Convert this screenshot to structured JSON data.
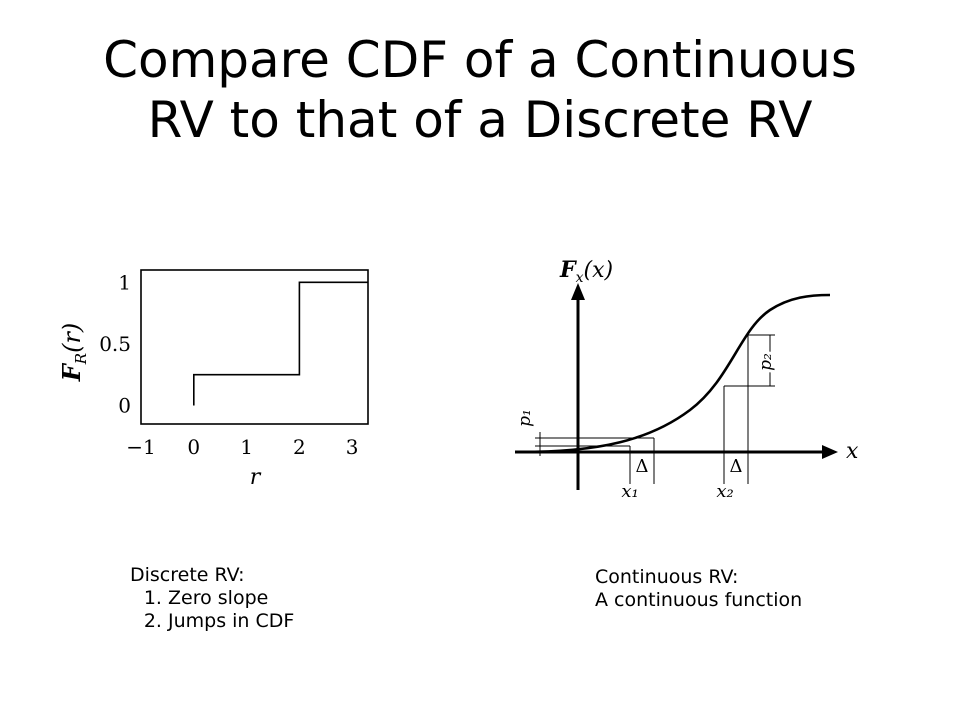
{
  "slide": {
    "title_line1": "Compare CDF of a Continuous",
    "title_line2": "RV to that of a Discrete RV"
  },
  "discrete_note": {
    "heading": "Discrete RV:",
    "items": [
      "Zero slope",
      "Jumps in CDF"
    ]
  },
  "continuous_note": {
    "heading": "Continuous RV:",
    "line": "A continuous function"
  },
  "chart_data": [
    {
      "type": "line",
      "subtype": "step",
      "title": "",
      "xlabel": "r",
      "ylabel": "F_R(r)",
      "xlim": [
        -1,
        3.3
      ],
      "ylim": [
        -0.15,
        1.1
      ],
      "x_ticks": [
        "−1",
        "0",
        "1",
        "2",
        "3"
      ],
      "y_ticks": [
        "0",
        "0.5",
        "1"
      ],
      "points": [
        [
          0,
          0
        ],
        [
          0,
          0.25
        ],
        [
          2,
          0.25
        ],
        [
          2,
          1
        ],
        [
          3.3,
          1
        ]
      ],
      "grid": false
    },
    {
      "type": "line",
      "subtype": "sigmoid-schematic",
      "title": "",
      "ylabel": "F_X(x)",
      "xlabel": "x",
      "annotations": {
        "x_markers": [
          "x₁",
          "x₂"
        ],
        "interval_labels": [
          "Δ",
          "Δ"
        ],
        "probability_labels": [
          "p₁",
          "p₂"
        ]
      },
      "grid": false
    }
  ]
}
